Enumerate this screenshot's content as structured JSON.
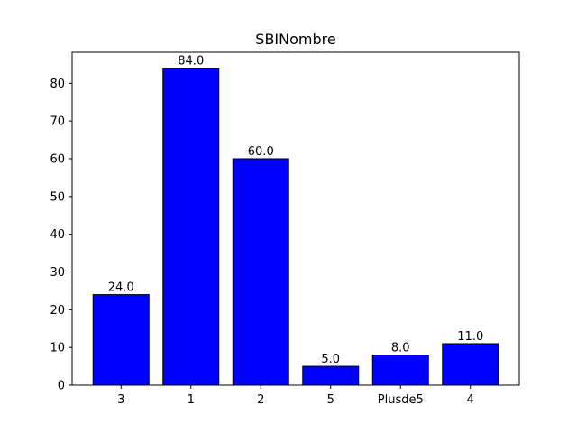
{
  "chart_data": {
    "type": "bar",
    "title": "SBINombre",
    "xlabel": "",
    "ylabel": "",
    "categories": [
      "3",
      "1",
      "2",
      "5",
      "Plusde5",
      "4"
    ],
    "values": [
      24.0,
      84.0,
      60.0,
      5.0,
      8.0,
      11.0
    ],
    "data_labels": [
      "24.0",
      "84.0",
      "60.0",
      "5.0",
      "8.0",
      "11.0"
    ],
    "ylim": [
      0,
      88.2
    ],
    "yticks": [
      0,
      10,
      20,
      30,
      40,
      50,
      60,
      70,
      80
    ],
    "grid": false,
    "legend": "none",
    "bar_color": "#0000ff",
    "bar_edge_color": "#000000"
  }
}
